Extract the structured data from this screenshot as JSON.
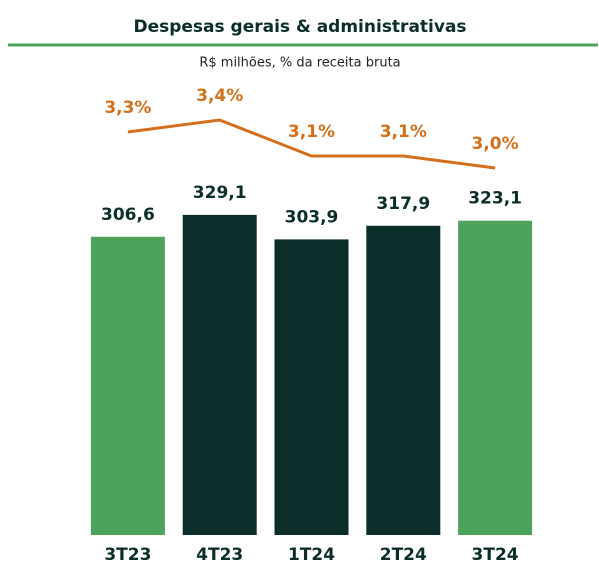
{
  "chart_data": {
    "type": "bar",
    "title": "Despesas gerais & administrativas",
    "subtitle": "R$ milhões, % da receita bruta",
    "categories": [
      "3T23",
      "4T23",
      "1T24",
      "2T24",
      "3T24"
    ],
    "ylim": [
      0,
      550
    ],
    "y2lim": [
      2.4,
      4.4
    ],
    "series": [
      {
        "type": "bar",
        "colors": [
          "#4ea35c",
          "#0c2e2a",
          "#0c2e2a",
          "#0c2e2a",
          "#4ea35c"
        ],
        "values": [
          306.6,
          329.1,
          303.9,
          317.9,
          323.1
        ],
        "value_labels": [
          "306,6",
          "329,1",
          "303,9",
          "317,9",
          "323,1"
        ]
      },
      {
        "type": "line",
        "axis": "y2",
        "color": "#d4701c",
        "values": [
          3.3,
          3.4,
          3.1,
          3.1,
          3.0
        ],
        "value_labels": [
          "3,3%",
          "3,4%",
          "3,1%",
          "3,1%",
          "3,0%"
        ]
      }
    ]
  }
}
